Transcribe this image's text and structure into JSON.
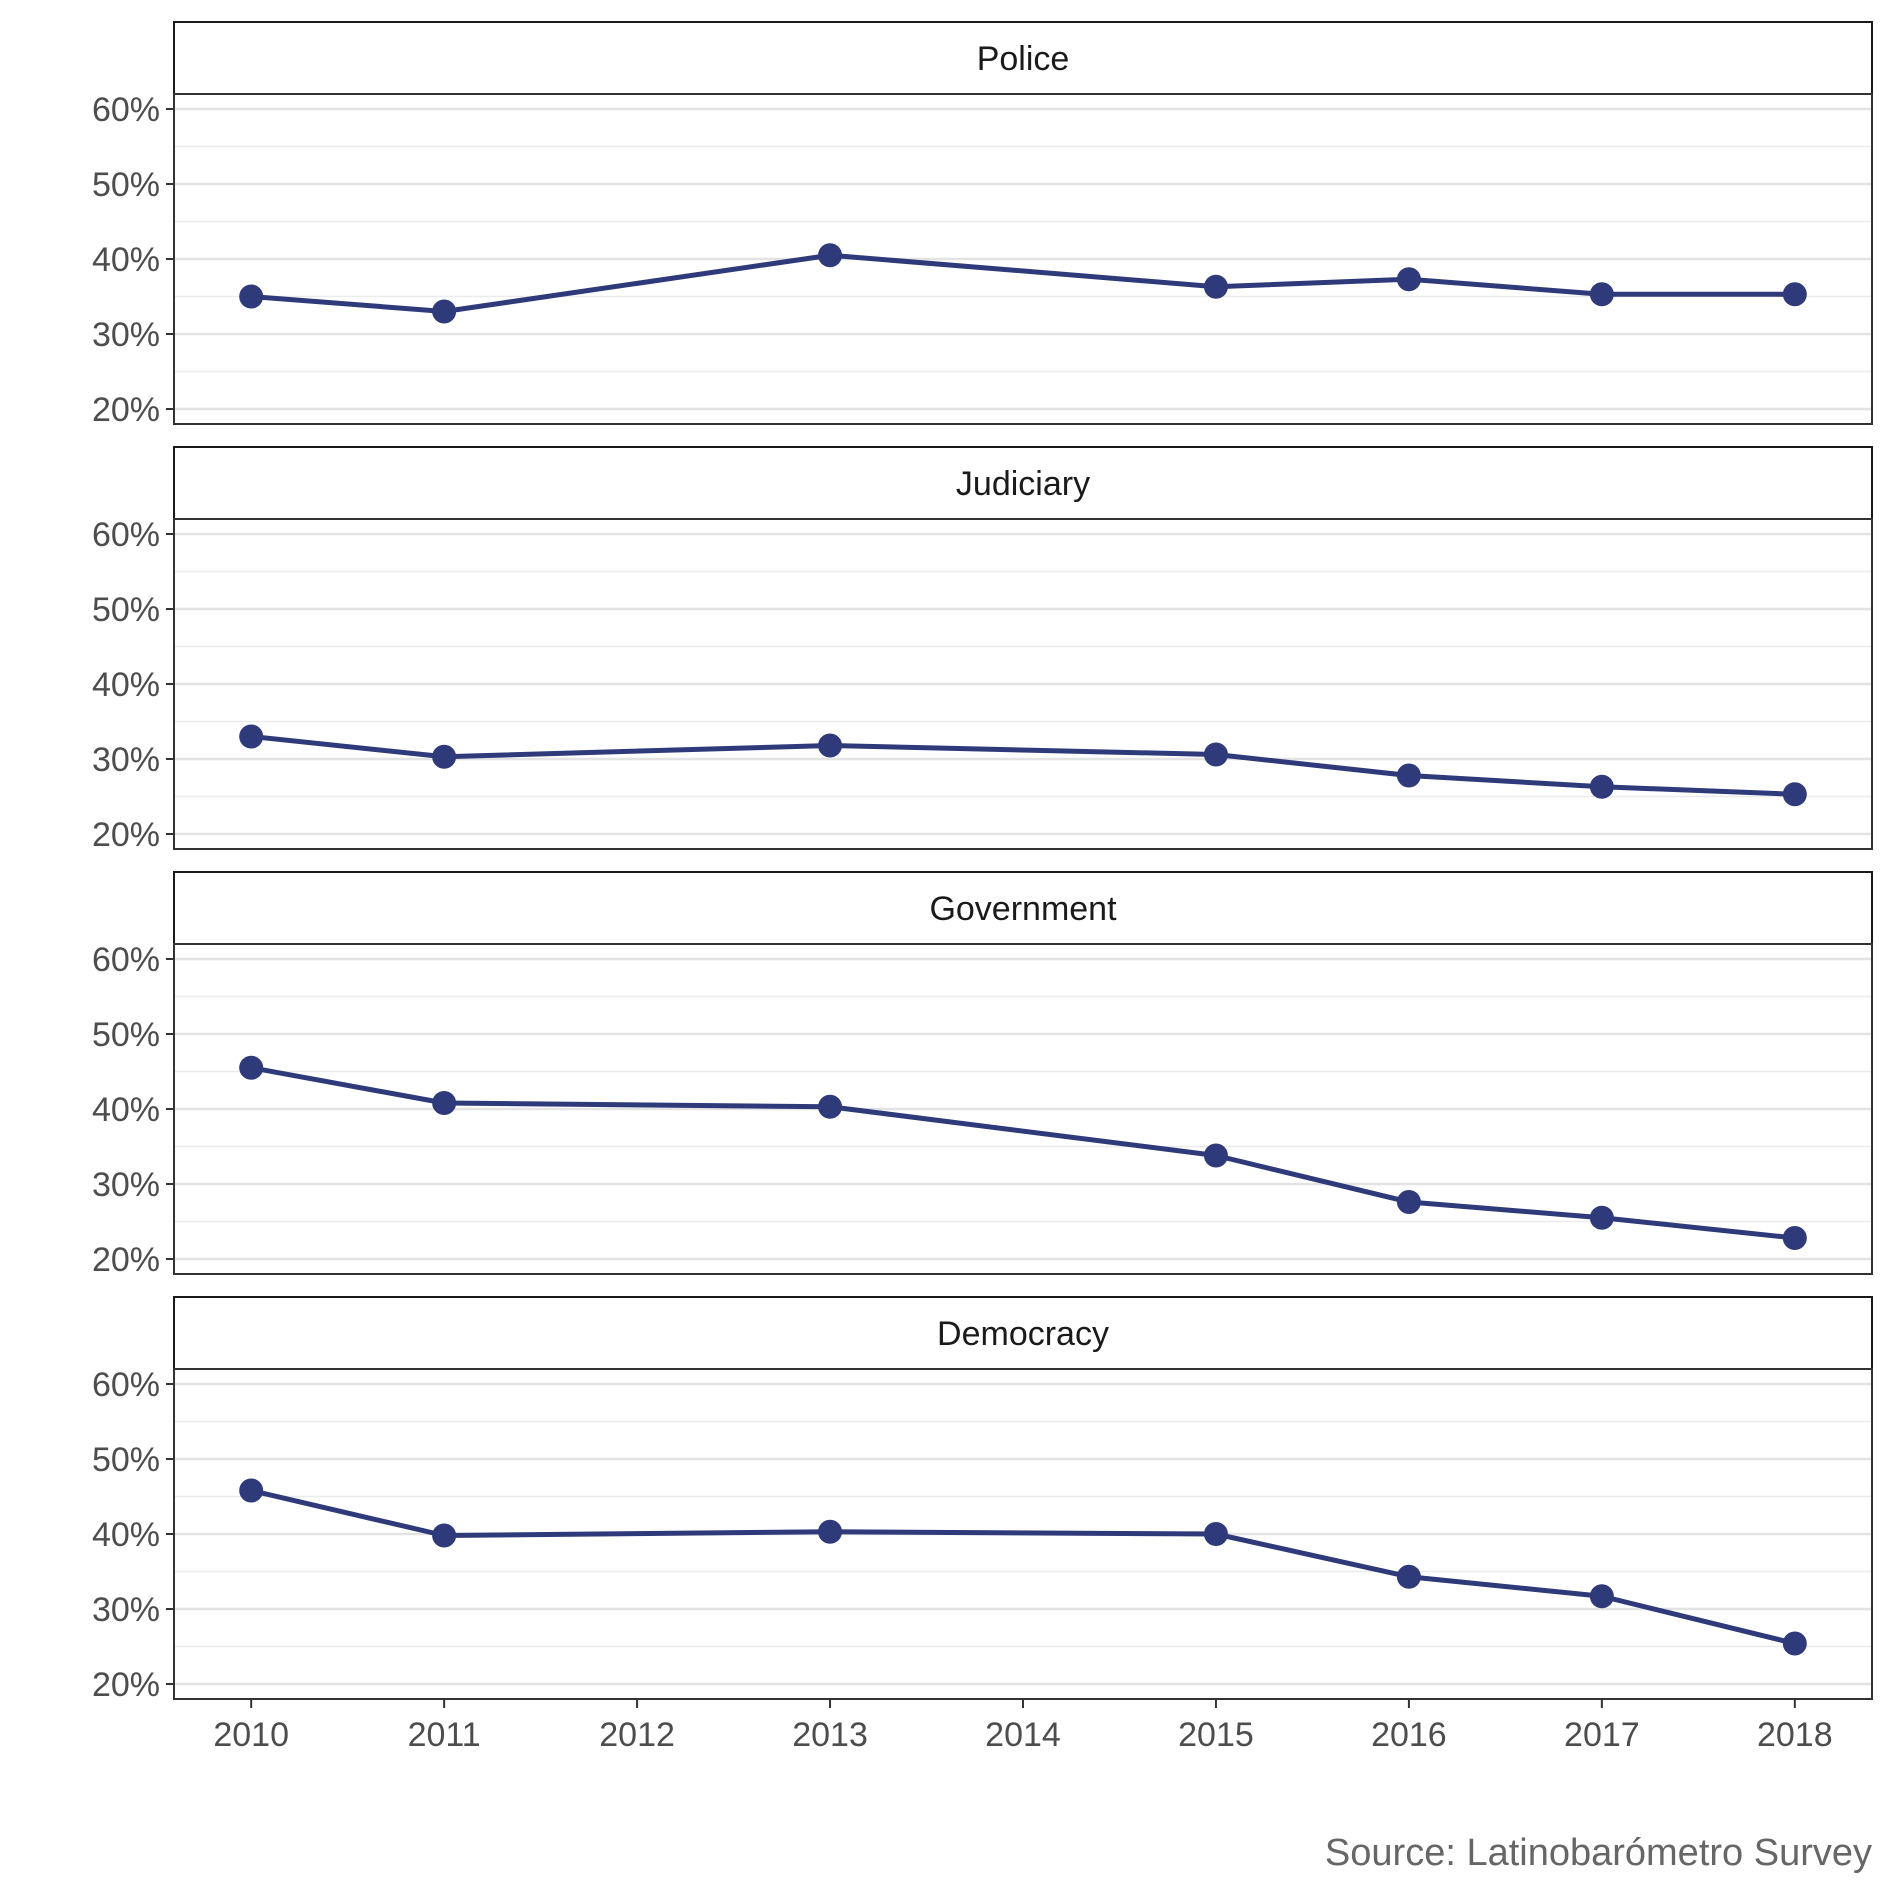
{
  "chart_data": {
    "type": "line",
    "layout": "facet-rows",
    "x": [
      2010,
      2011,
      2013,
      2015,
      2016,
      2017,
      2018
    ],
    "x_ticks": [
      "2010",
      "2011",
      "2012",
      "2013",
      "2014",
      "2015",
      "2016",
      "2017",
      "2018"
    ],
    "xlim": [
      2009.6,
      2018.4
    ],
    "ylim": [
      18,
      62
    ],
    "y_ticks": [
      20,
      30,
      40,
      50,
      60
    ],
    "y_tick_labels": [
      "20%",
      "30%",
      "40%",
      "50%",
      "60%"
    ],
    "grid": true,
    "legend": "none",
    "series_color": "#2e3a7a",
    "facets": [
      {
        "title": "Police",
        "values": [
          35.0,
          33.0,
          40.5,
          36.3,
          37.3,
          35.3,
          35.3
        ]
      },
      {
        "title": "Judiciary",
        "values": [
          33.0,
          30.3,
          31.8,
          30.6,
          27.8,
          26.3,
          25.3
        ]
      },
      {
        "title": "Government",
        "values": [
          45.5,
          40.8,
          40.3,
          33.8,
          27.6,
          25.5,
          22.8
        ]
      },
      {
        "title": "Democracy",
        "values": [
          45.8,
          39.8,
          40.3,
          40.0,
          34.3,
          31.7,
          25.4
        ]
      }
    ],
    "caption": "Source: Latinobarómetro Survey"
  }
}
